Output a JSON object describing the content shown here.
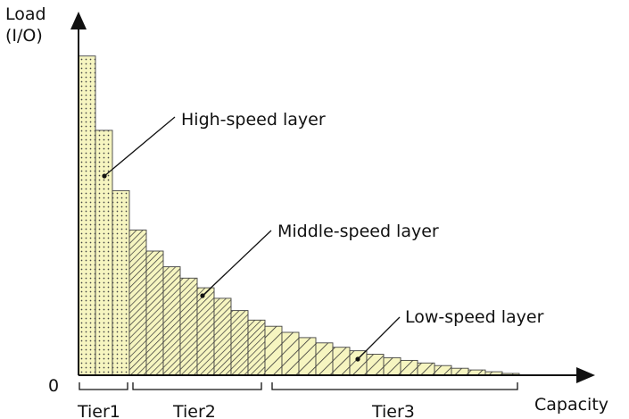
{
  "chart_data": {
    "type": "bar",
    "ylabel": "Load\n(I/O)",
    "xlabel": "Capacity",
    "y_origin_label": "0",
    "values": [
      365,
      280,
      211,
      166,
      142,
      124,
      111,
      100,
      88,
      74,
      63,
      56,
      49,
      43,
      37,
      32,
      28,
      24,
      20,
      17,
      14,
      11,
      8,
      6,
      4,
      2
    ],
    "ylim": [
      0,
      380
    ],
    "grid": false,
    "tiers": [
      {
        "name": "Tier1",
        "layer": "High-speed layer",
        "bars": [
          0,
          2
        ],
        "pattern": "dots"
      },
      {
        "name": "Tier2",
        "layer": "Middle-speed layer",
        "bars": [
          3,
          10
        ],
        "pattern": "dense-diagonal"
      },
      {
        "name": "Tier3",
        "layer": "Low-speed layer",
        "bars": [
          11,
          25
        ],
        "pattern": "sparse-diagonal"
      }
    ],
    "colors": {
      "fill": "#f6f5c0",
      "stroke": "#444444",
      "axis": "#111111"
    }
  }
}
